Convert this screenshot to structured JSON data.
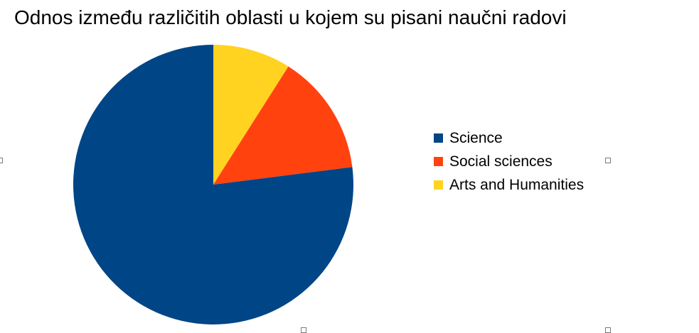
{
  "chart_data": {
    "type": "pie",
    "title": "Odnos između različitih oblasti u kojem su pisani naučni radovi",
    "categories": [
      "Science",
      "Social sciences",
      "Arts and Humanities"
    ],
    "values": [
      77,
      14,
      9
    ],
    "colors": [
      "#004586",
      "#ff420e",
      "#ffd320"
    ],
    "legend": "right"
  }
}
